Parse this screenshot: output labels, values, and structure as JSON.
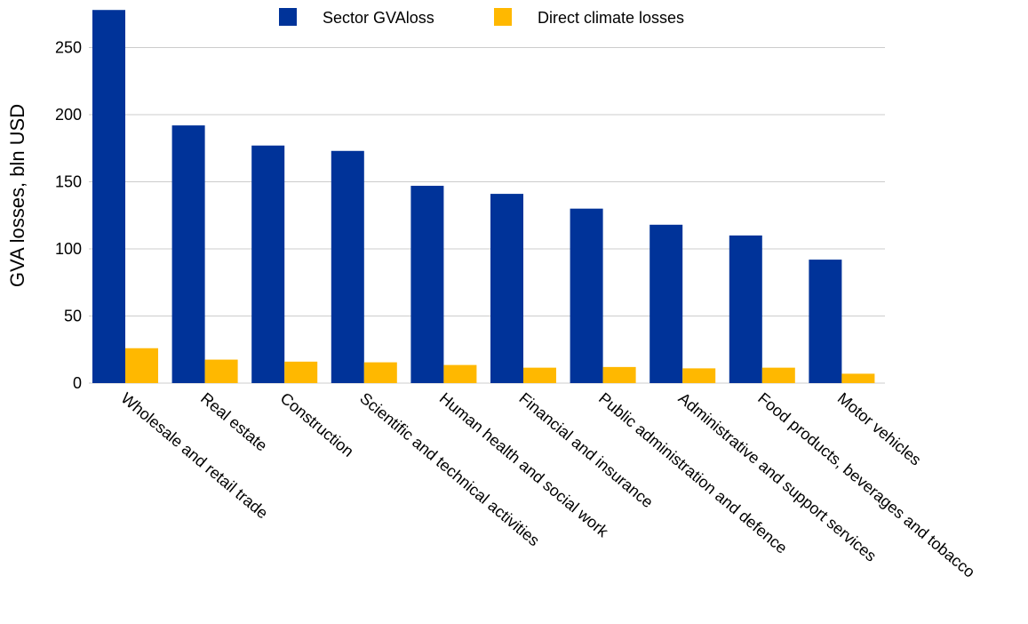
{
  "chart_data": {
    "type": "bar",
    "title": "",
    "xlabel": "",
    "ylabel": "GVA losses, bln USD",
    "ylim": [
      0,
      280
    ],
    "yticks": [
      0,
      50,
      100,
      150,
      200,
      250
    ],
    "grid": "horizontal",
    "legend_position": "top-center",
    "categories": [
      "Wholesale and retail trade",
      "Real estate",
      "Construction",
      "Scientific and technical activities",
      "Human health and social work",
      "Financial and insurance",
      "Public administration and defence",
      "Administrative and support services",
      "Food products, beverages and tobacco",
      "Motor vehicles"
    ],
    "series": [
      {
        "name": "Sector GVAloss",
        "color": "#003399",
        "values": [
          278,
          192,
          177,
          173,
          147,
          141,
          130,
          118,
          110,
          92
        ]
      },
      {
        "name": "Direct climate losses",
        "color": "#ffb800",
        "values": [
          26,
          17.5,
          16,
          15.5,
          13.5,
          11.5,
          12,
          11,
          11.5,
          7
        ]
      }
    ]
  }
}
